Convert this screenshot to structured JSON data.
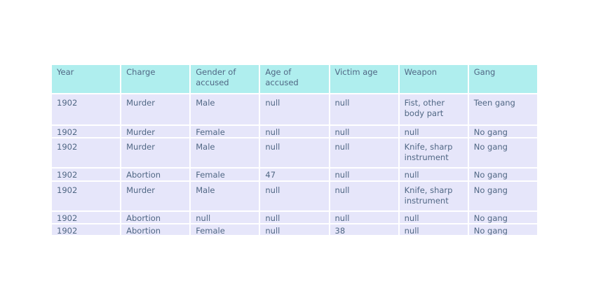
{
  "table": {
    "header": [
      "Year",
      "Charge",
      "Gender of accused",
      "Age of accused",
      "Victim age",
      "Weapon",
      "Gang"
    ],
    "rows": [
      [
        "1902",
        "Murder",
        "Male",
        "null",
        "null",
        "Fist, other body part",
        "Teen gang"
      ],
      [
        "1902",
        "Murder",
        "Female",
        "null",
        "null",
        "null",
        "No gang"
      ],
      [
        "1902",
        "Murder",
        "Male",
        "null",
        "null",
        "Knife, sharp instrument",
        "No gang"
      ],
      [
        "1902",
        "Abortion",
        "Female",
        "47",
        "null",
        "null",
        "No gang"
      ],
      [
        "1902",
        "Murder",
        "Male",
        "null",
        "null",
        "Knife, sharp instrument",
        "No gang"
      ],
      [
        "1902",
        "Abortion",
        "null",
        "null",
        "null",
        "null",
        "No gang"
      ],
      [
        "1902",
        "Abortion",
        "Female",
        "null",
        "38",
        "null",
        "No gang"
      ]
    ]
  }
}
